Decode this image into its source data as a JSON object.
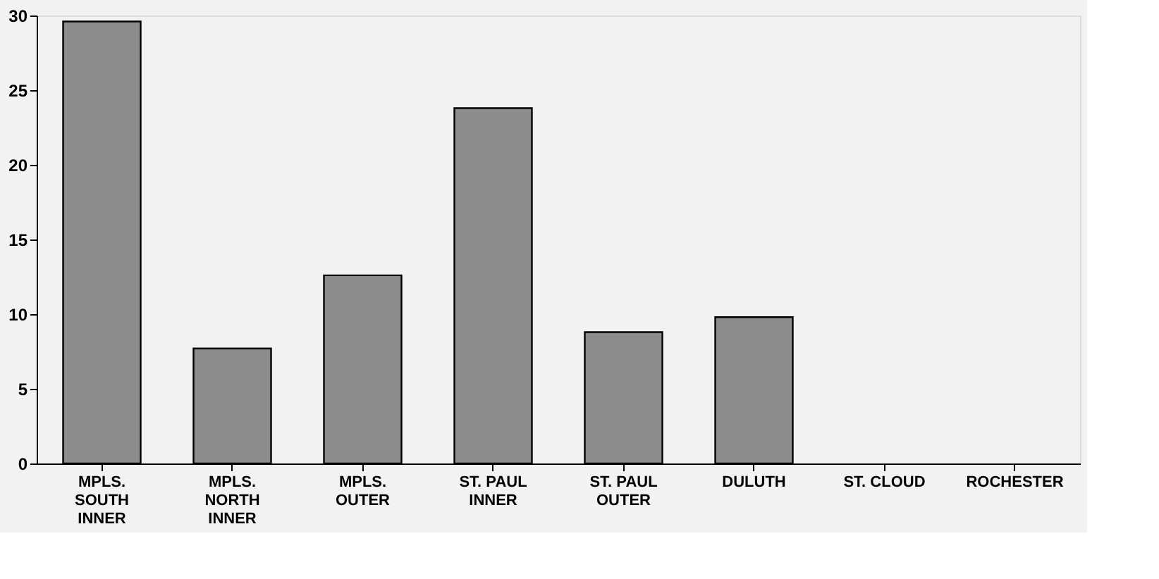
{
  "chart_data": {
    "type": "bar",
    "categories": [
      "MPLS. SOUTH INNER",
      "MPLS. NORTH INNER",
      "MPLS. OUTER",
      "ST. PAUL INNER",
      "ST. PAUL OUTER",
      "DULUTH",
      "ST. CLOUD",
      "ROCHESTER"
    ],
    "values": [
      29.6,
      7.7,
      12.6,
      23.8,
      8.8,
      9.8,
      0,
      0
    ],
    "color": "#8c8c8c",
    "ylim": [
      0,
      30
    ],
    "yticks": [
      0,
      5,
      10,
      15,
      20,
      25,
      30
    ],
    "grid": false
  }
}
